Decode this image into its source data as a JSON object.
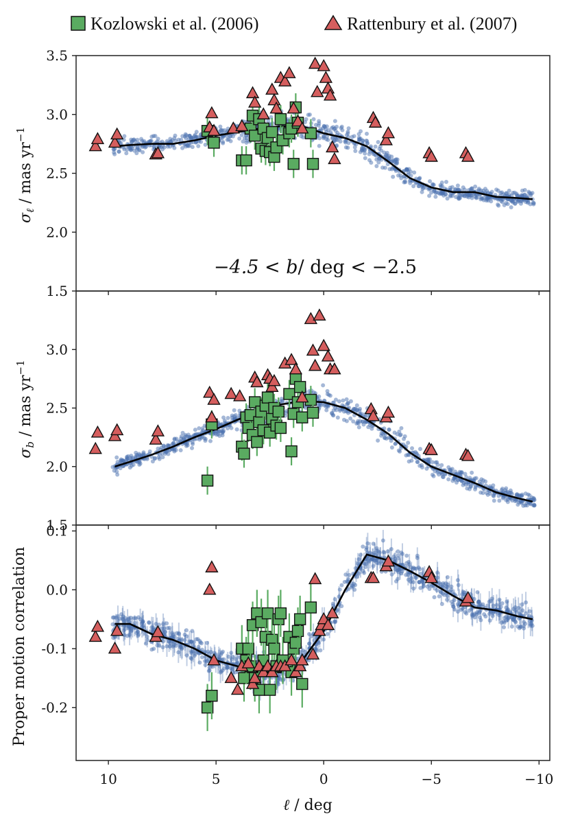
{
  "legend": {
    "items": [
      {
        "label": "Kozlowski et al. (2006)",
        "marker": "square",
        "color": "#5aab61"
      },
      {
        "label": "Rattenbury et al. (2007)",
        "marker": "triangle",
        "color": "#d55e5e"
      }
    ]
  },
  "colors": {
    "model": "#4c72b0",
    "model_line": "#000000",
    "kozlowski": "#5aab61",
    "rattenbury": "#d55e5e"
  },
  "chart_data": [
    {
      "type": "scatter",
      "panel": "top",
      "ylabel_tex": "σℓ / mas yr⁻¹",
      "annotation": "−4.5 < b/ deg < −2.5",
      "ylim": [
        1.5,
        3.5
      ],
      "yticks": [
        "1.5",
        "2.0",
        "2.5",
        "3.0",
        "3.5"
      ],
      "xlim": [
        11.5,
        -10.5
      ],
      "model_line": {
        "x": [
          9.7,
          9,
          8,
          7,
          6,
          5,
          4,
          3,
          2,
          1,
          0,
          -1,
          -2,
          -3,
          -4,
          -5,
          -6,
          -7,
          -8,
          -9,
          -9.7
        ],
        "y": [
          2.73,
          2.74,
          2.75,
          2.75,
          2.78,
          2.82,
          2.85,
          2.88,
          2.9,
          2.9,
          2.84,
          2.8,
          2.73,
          2.6,
          2.46,
          2.38,
          2.34,
          2.34,
          2.3,
          2.29,
          2.28
        ]
      },
      "series": [
        {
          "name": "Kozlowski et al. (2006)",
          "marker": "square",
          "x": [
            5.4,
            5.1,
            3.8,
            3.6,
            3.4,
            3.3,
            3.2,
            3.0,
            2.9,
            2.8,
            2.7,
            2.6,
            2.5,
            2.4,
            2.3,
            2.2,
            2.0,
            1.9,
            1.6,
            1.5,
            1.4,
            1.3,
            1.2,
            0.6,
            0.5
          ],
          "y": [
            2.86,
            2.76,
            2.61,
            2.61,
            2.88,
            2.99,
            2.82,
            2.96,
            2.71,
            2.88,
            2.69,
            2.8,
            2.68,
            2.85,
            2.64,
            2.72,
            2.96,
            2.78,
            2.84,
            2.88,
            2.58,
            3.06,
            2.93,
            2.84,
            2.58
          ]
        },
        {
          "name": "Rattenbury et al. (2007)",
          "marker": "triangle",
          "x": [
            10.6,
            10.5,
            9.7,
            9.6,
            7.8,
            7.7,
            5.3,
            5.2,
            5.1,
            4.2,
            3.8,
            3.3,
            3.2,
            2.8,
            2.4,
            2.3,
            2.2,
            2.0,
            1.8,
            1.6,
            1.4,
            1.2,
            1.0,
            0.4,
            0.3,
            0.0,
            -0.1,
            -0.2,
            -0.3,
            -0.4,
            -0.5,
            -2.3,
            -2.4,
            -2.9,
            -3.0,
            -4.9,
            -5.0,
            -6.6,
            -6.7
          ],
          "y": [
            2.73,
            2.79,
            2.76,
            2.83,
            2.66,
            2.67,
            2.89,
            3.01,
            2.86,
            2.88,
            2.9,
            3.18,
            3.1,
            3.0,
            3.21,
            3.12,
            3.05,
            3.31,
            3.28,
            3.35,
            3.05,
            2.94,
            2.88,
            3.43,
            3.19,
            3.41,
            3.31,
            3.22,
            3.16,
            2.72,
            2.62,
            2.97,
            2.93,
            2.78,
            2.84,
            2.67,
            2.64,
            2.67,
            2.64
          ]
        }
      ]
    },
    {
      "type": "scatter",
      "panel": "middle",
      "ylabel_tex": "σb / mas yr⁻¹",
      "ylim": [
        1.5,
        3.5
      ],
      "yticks": [
        "1.5",
        "2.0",
        "2.5",
        "3.0"
      ],
      "xlim": [
        11.5,
        -10.5
      ],
      "model_line": {
        "x": [
          9.7,
          9,
          8,
          7,
          6,
          5,
          4,
          3,
          2,
          1,
          0,
          -1,
          -2,
          -3,
          -4,
          -5,
          -6,
          -7,
          -8,
          -9,
          -9.7
        ],
        "y": [
          2.0,
          2.04,
          2.1,
          2.17,
          2.25,
          2.32,
          2.4,
          2.47,
          2.53,
          2.56,
          2.55,
          2.5,
          2.4,
          2.28,
          2.12,
          2.0,
          1.93,
          1.86,
          1.78,
          1.73,
          1.7
        ]
      },
      "series": [
        {
          "name": "Kozlowski et al. (2006)",
          "marker": "square",
          "x": [
            5.4,
            5.2,
            3.8,
            3.7,
            3.6,
            3.5,
            3.4,
            3.3,
            3.2,
            3.1,
            3.0,
            2.9,
            2.8,
            2.7,
            2.6,
            2.5,
            2.4,
            2.3,
            2.2,
            2.1,
            2.0,
            1.6,
            1.5,
            1.4,
            1.3,
            1.2,
            1.1,
            1.0,
            0.6,
            0.5
          ],
          "y": [
            1.88,
            2.36,
            2.17,
            2.11,
            2.42,
            2.33,
            2.44,
            2.27,
            2.55,
            2.21,
            2.38,
            2.47,
            2.31,
            2.52,
            2.59,
            2.29,
            2.41,
            2.5,
            2.35,
            2.47,
            2.33,
            2.62,
            2.13,
            2.45,
            2.75,
            2.55,
            2.68,
            2.42,
            2.57,
            2.46
          ]
        },
        {
          "name": "Rattenbury et al. (2007)",
          "marker": "triangle",
          "x": [
            10.6,
            10.5,
            9.7,
            9.6,
            7.8,
            7.7,
            5.3,
            5.2,
            5.1,
            4.3,
            3.9,
            3.2,
            3.1,
            2.6,
            2.5,
            2.4,
            2.3,
            1.8,
            1.5,
            1.3,
            1.0,
            0.6,
            0.5,
            0.4,
            0.2,
            0.0,
            -0.2,
            -0.3,
            -0.5,
            -2.2,
            -2.3,
            -2.9,
            -3.0,
            -4.9,
            -5.0,
            -6.6,
            -6.7
          ],
          "y": [
            2.15,
            2.29,
            2.26,
            2.31,
            2.23,
            2.3,
            2.63,
            2.42,
            2.57,
            2.62,
            2.6,
            2.76,
            2.72,
            2.78,
            2.75,
            2.68,
            2.73,
            2.88,
            2.91,
            2.83,
            2.59,
            3.26,
            2.99,
            2.86,
            3.29,
            3.03,
            2.94,
            2.83,
            2.83,
            2.49,
            2.43,
            2.42,
            2.46,
            2.15,
            2.14,
            2.1,
            2.09
          ]
        }
      ]
    },
    {
      "type": "scatter",
      "panel": "bottom",
      "ylabel": "Proper motion correlation",
      "xlabel_tex": "ℓ / deg",
      "ylim": [
        -0.29,
        0.11
      ],
      "yticks": [
        "-0.2",
        "-0.1",
        "0.0",
        "0.1"
      ],
      "xlim": [
        11.5,
        -10.5
      ],
      "xticks": [
        "10",
        "5",
        "0",
        "−5",
        "−10"
      ],
      "model_line": {
        "x": [
          9.7,
          9,
          8,
          7,
          6,
          5,
          4,
          3,
          2,
          1,
          0,
          -1,
          -2,
          -3,
          -4,
          -5,
          -6,
          -7,
          -8,
          -9,
          -9.7
        ],
        "y": [
          -0.058,
          -0.058,
          -0.075,
          -0.085,
          -0.1,
          -0.12,
          -0.13,
          -0.14,
          -0.14,
          -0.12,
          -0.07,
          0.0,
          0.06,
          0.05,
          0.032,
          0.012,
          -0.01,
          -0.03,
          -0.035,
          -0.045,
          -0.05
        ]
      },
      "series": [
        {
          "name": "Kozlowski et al. (2006)",
          "marker": "square",
          "x": [
            5.4,
            5.2,
            3.8,
            3.7,
            3.6,
            3.5,
            3.4,
            3.3,
            3.2,
            3.1,
            3.0,
            2.9,
            2.8,
            2.7,
            2.6,
            2.5,
            2.4,
            2.3,
            2.2,
            2.1,
            2.0,
            1.9,
            1.6,
            1.5,
            1.4,
            1.3,
            1.2,
            1.1,
            1.0,
            0.6
          ],
          "y": [
            -0.2,
            -0.18,
            -0.1,
            -0.15,
            -0.12,
            -0.1,
            -0.13,
            -0.06,
            -0.15,
            -0.04,
            -0.17,
            -0.055,
            -0.12,
            -0.08,
            -0.04,
            -0.17,
            -0.085,
            -0.1,
            -0.13,
            -0.05,
            -0.04,
            -0.12,
            -0.08,
            -0.14,
            -0.1,
            -0.09,
            -0.07,
            -0.05,
            -0.16,
            -0.03
          ]
        },
        {
          "name": "Rattenbury et al. (2007)",
          "marker": "triangle",
          "x": [
            10.6,
            10.5,
            9.7,
            9.6,
            7.8,
            7.7,
            5.3,
            5.2,
            5.1,
            4.3,
            4.0,
            3.8,
            3.5,
            3.3,
            3.2,
            3.0,
            2.8,
            2.6,
            2.4,
            2.2,
            2.0,
            1.8,
            1.5,
            1.3,
            1.1,
            1.0,
            0.5,
            0.4,
            0.2,
            0.1,
            0.0,
            -0.2,
            -0.4,
            -2.2,
            -2.3,
            -2.9,
            -3.0,
            -4.9,
            -5.0,
            -6.6,
            -6.7
          ],
          "y": [
            -0.08,
            -0.063,
            -0.1,
            -0.07,
            -0.08,
            -0.072,
            0.0,
            0.038,
            -0.12,
            -0.15,
            -0.17,
            -0.13,
            -0.125,
            -0.16,
            -0.15,
            -0.13,
            -0.14,
            -0.13,
            -0.14,
            -0.13,
            -0.13,
            -0.13,
            -0.12,
            -0.14,
            -0.13,
            -0.12,
            -0.11,
            0.018,
            -0.07,
            -0.06,
            -0.05,
            -0.06,
            -0.04,
            0.02,
            0.02,
            0.04,
            0.048,
            0.03,
            0.02,
            -0.02,
            -0.014
          ]
        }
      ]
    }
  ]
}
